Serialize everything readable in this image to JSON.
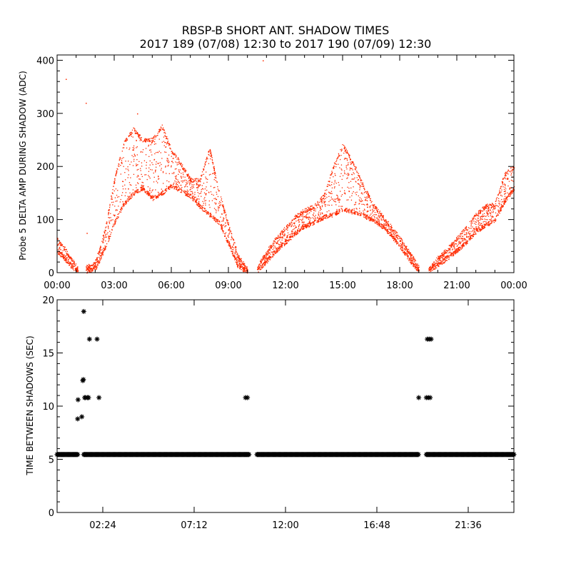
{
  "title_line1": "RBSP-B SHORT ANT. SHADOW TIMES",
  "title_line2": "2017 189 (07/08) 12:30 to 2017 190 (07/09) 12:30",
  "colors": {
    "amp": "#ff2a00",
    "gap": "#000000",
    "axis": "#000000"
  },
  "chart_data": [
    {
      "type": "scatter",
      "ylabel": "Probe 5 DELTA AMP DURING SHADOW (ADC)",
      "x_unit": "hours",
      "xlim": [
        0,
        24
      ],
      "ylim": [
        0,
        410
      ],
      "xticks": [
        0,
        3,
        6,
        9,
        12,
        15,
        18,
        21,
        24
      ],
      "xtick_labels": [
        "00:00",
        "03:00",
        "06:00",
        "09:00",
        "12:00",
        "15:00",
        "18:00",
        "21:00",
        "00:00"
      ],
      "yticks": [
        0,
        100,
        200,
        300,
        400
      ],
      "ytick_labels": [
        "0",
        "100",
        "200",
        "300",
        "400"
      ],
      "marker": "dot",
      "series": [
        {
          "segments": [
            {
              "x": [
                0.0,
                0.3,
                0.6,
                0.9,
                1.1
              ],
              "y_low": [
                40,
                30,
                18,
                6,
                2
              ],
              "y_high": [
                62,
                50,
                34,
                18,
                6
              ]
            },
            {
              "x": [
                1.5,
                2.0,
                2.5,
                3.0,
                3.5,
                4.0,
                4.5,
                5.0,
                5.5,
                6.0,
                6.5,
                7.0,
                7.5,
                8.0,
                8.5,
                9.0,
                9.5,
                10.0
              ],
              "y_low": [
                3,
                8,
                45,
                95,
                130,
                150,
                160,
                140,
                150,
                165,
                155,
                145,
                125,
                110,
                95,
                55,
                12,
                2
              ],
              "y_high": [
                10,
                20,
                80,
                175,
                245,
                270,
                250,
                250,
                275,
                230,
                205,
                175,
                175,
                235,
                150,
                90,
                32,
                6
              ]
            },
            {
              "x": [
                10.5,
                11.0,
                11.5,
                12.0,
                12.5,
                13.0,
                13.5,
                14.0,
                14.5,
                15.0,
                15.5,
                16.0,
                16.5,
                17.0,
                17.5,
                18.0,
                18.5,
                19.0
              ],
              "y_low": [
                4,
                22,
                42,
                58,
                75,
                88,
                95,
                105,
                110,
                120,
                115,
                110,
                100,
                90,
                72,
                50,
                25,
                3
              ],
              "y_high": [
                10,
                40,
                65,
                85,
                105,
                118,
                125,
                145,
                200,
                240,
                210,
                170,
                135,
                110,
                88,
                65,
                38,
                10
              ]
            },
            {
              "x": [
                19.5,
                20.0,
                20.5,
                21.0,
                21.5,
                22.0,
                22.5,
                23.0,
                23.5,
                24.0
              ],
              "y_low": [
                3,
                15,
                28,
                42,
                58,
                78,
                90,
                100,
                135,
                160
              ],
              "y_high": [
                8,
                28,
                45,
                65,
                85,
                110,
                125,
                130,
                185,
                200
              ]
            }
          ]
        }
      ]
    },
    {
      "type": "scatter",
      "ylabel": "TIME BETWEEN SHADOWS (SEC)",
      "x_unit": "hours",
      "xlim": [
        0,
        24
      ],
      "ylim": [
        0,
        20
      ],
      "xticks": [
        2.4,
        7.2,
        12.0,
        16.8,
        21.6
      ],
      "xtick_labels": [
        "02:24",
        "07:12",
        "12:00",
        "16:48",
        "21:36"
      ],
      "yticks": [
        0,
        5,
        10,
        15,
        20
      ],
      "ytick_labels": [
        "0",
        "5",
        "10",
        "15",
        "20"
      ],
      "marker": "asterisk",
      "baseline": {
        "value": 5.45,
        "ranges": [
          [
            0.0,
            1.1
          ],
          [
            1.4,
            10.1
          ],
          [
            10.5,
            19.0
          ],
          [
            19.4,
            24.0
          ]
        ]
      },
      "points": [
        {
          "x": 1.08,
          "y": 8.8
        },
        {
          "x": 1.1,
          "y": 10.6
        },
        {
          "x": 1.3,
          "y": 9.0
        },
        {
          "x": 1.35,
          "y": 12.4
        },
        {
          "x": 1.38,
          "y": 12.5
        },
        {
          "x": 1.4,
          "y": 18.9
        },
        {
          "x": 1.45,
          "y": 10.8
        },
        {
          "x": 1.5,
          "y": 10.8
        },
        {
          "x": 1.6,
          "y": 10.8
        },
        {
          "x": 1.65,
          "y": 10.8
        },
        {
          "x": 1.7,
          "y": 16.3
        },
        {
          "x": 2.1,
          "y": 16.3
        },
        {
          "x": 2.2,
          "y": 10.8
        },
        {
          "x": 9.9,
          "y": 10.8
        },
        {
          "x": 10.0,
          "y": 10.8
        },
        {
          "x": 19.0,
          "y": 10.8
        },
        {
          "x": 19.4,
          "y": 10.8
        },
        {
          "x": 19.5,
          "y": 10.8
        },
        {
          "x": 19.6,
          "y": 10.8
        },
        {
          "x": 19.45,
          "y": 16.3
        },
        {
          "x": 19.55,
          "y": 16.3
        },
        {
          "x": 19.65,
          "y": 16.3
        }
      ]
    }
  ]
}
